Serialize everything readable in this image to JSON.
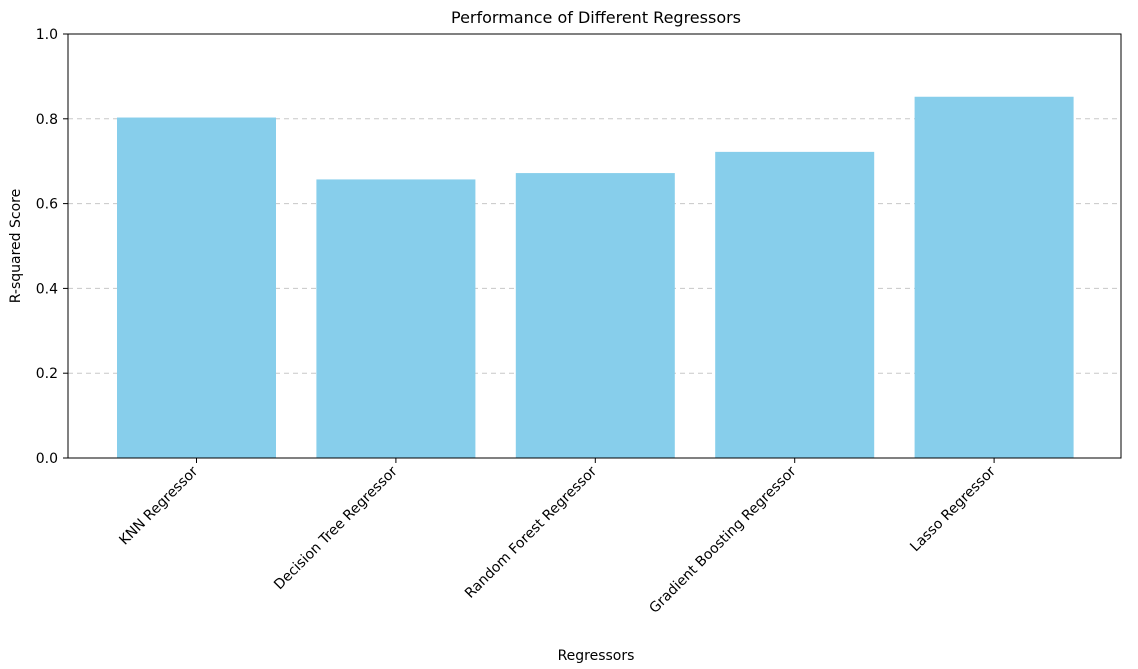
{
  "chart_data": {
    "type": "bar",
    "title": "Performance of Different Regressors",
    "xlabel": "Regressors",
    "ylabel": "R-squared Score",
    "categories": [
      "KNN Regressor",
      "Decision Tree Regressor",
      "Random Forest Regressor",
      "Gradient Boosting Regressor",
      "Lasso Regressor"
    ],
    "values": [
      0.803,
      0.657,
      0.672,
      0.722,
      0.852
    ],
    "ylim": [
      0,
      1.0
    ],
    "yticks": [
      "0.0",
      "0.2",
      "0.4",
      "0.6",
      "0.8",
      "1.0"
    ],
    "grid": "y-dashed",
    "bar_color": "#87ceeb",
    "grid_color": "#c8c8c8"
  }
}
